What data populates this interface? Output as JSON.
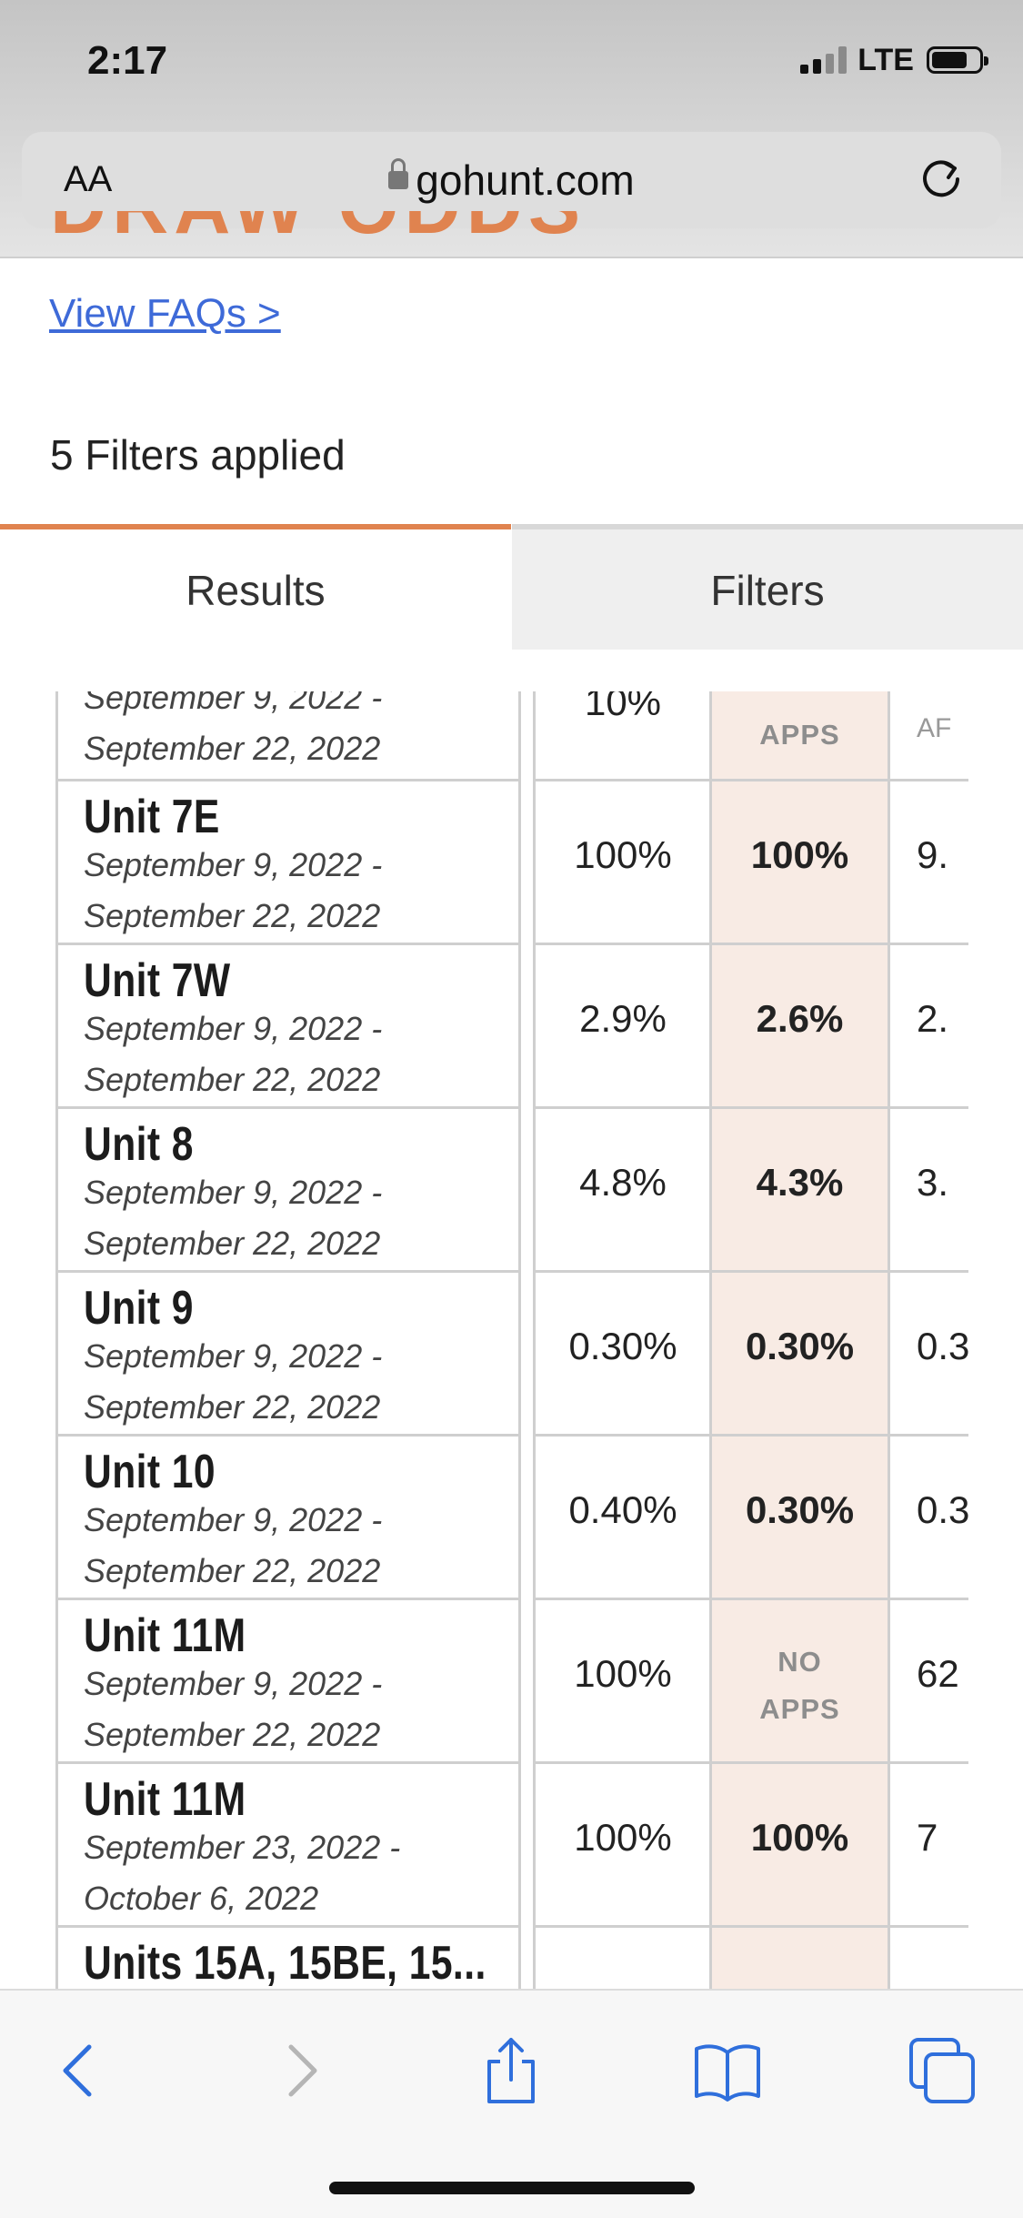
{
  "status_bar": {
    "time": "2:17",
    "network": "LTE"
  },
  "address_bar": {
    "aa": "AA",
    "url": "gohunt.com"
  },
  "page": {
    "heading_partial": "DRAW ODDS",
    "faq_link": "View FAQs >",
    "filters_applied": "5 Filters applied"
  },
  "tabs": {
    "results": "Results",
    "filters": "Filters"
  },
  "table": {
    "partial_row": {
      "date1": "September 9, 2022 -",
      "date2": "September 22, 2022",
      "col1": "10%",
      "col2": "APPS",
      "col3": "AF"
    },
    "rows": [
      {
        "unit": "Unit 7E",
        "date1": "September 9, 2022 -",
        "date2": "September 22, 2022",
        "col1": "100%",
        "col2": "100%",
        "col3": "9."
      },
      {
        "unit": "Unit 7W",
        "date1": "September 9, 2022 -",
        "date2": "September 22, 2022",
        "col1": "2.9%",
        "col2": "2.6%",
        "col3": "2."
      },
      {
        "unit": "Unit 8",
        "date1": "September 9, 2022 -",
        "date2": "September 22, 2022",
        "col1": "4.8%",
        "col2": "4.3%",
        "col3": "3."
      },
      {
        "unit": "Unit 9",
        "date1": "September 9, 2022 -",
        "date2": "September 22, 2022",
        "col1": "0.30%",
        "col2": "0.30%",
        "col3": "0.3"
      },
      {
        "unit": "Unit 10",
        "date1": "September 9, 2022 -",
        "date2": "September 22, 2022",
        "col1": "0.40%",
        "col2": "0.30%",
        "col3": "0.3"
      },
      {
        "unit": "Unit 11M",
        "date1": "September 9, 2022 -",
        "date2": "September 22, 2022",
        "col1": "100%",
        "col2_line1": "NO",
        "col2_line2": "APPS",
        "col3": "62"
      },
      {
        "unit": "Unit 11M",
        "date1": "September 23, 2022 -",
        "date2": "October 6, 2022",
        "col1": "100%",
        "col2": "100%",
        "col3": "7"
      },
      {
        "unit": "Units 15A, 15BE, 15..."
      }
    ]
  },
  "toolbar": [
    "back-icon",
    "forward-icon",
    "share-icon",
    "bookmarks-icon",
    "tabs-icon"
  ]
}
